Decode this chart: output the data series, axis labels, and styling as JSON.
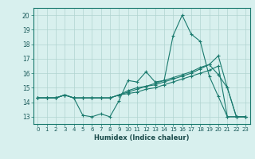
{
  "xlabel": "Humidex (Indice chaleur)",
  "background_color": "#d8f0ee",
  "grid_color": "#b0d4d0",
  "line_color": "#1a7a6e",
  "xlim": [
    -0.5,
    23.5
  ],
  "ylim": [
    12.5,
    20.5
  ],
  "yticks": [
    13,
    14,
    15,
    16,
    17,
    18,
    19,
    20
  ],
  "xticks": [
    0,
    1,
    2,
    3,
    4,
    5,
    6,
    7,
    8,
    9,
    10,
    11,
    12,
    13,
    14,
    15,
    16,
    17,
    18,
    19,
    20,
    21,
    22,
    23
  ],
  "series": [
    [
      14.3,
      14.3,
      14.3,
      14.5,
      14.3,
      13.1,
      13.0,
      13.2,
      13.0,
      14.1,
      15.5,
      15.4,
      16.1,
      15.4,
      15.5,
      18.6,
      20.0,
      18.7,
      18.2,
      15.8,
      14.4,
      13.0,
      13.0,
      13.0
    ],
    [
      14.3,
      14.3,
      14.3,
      14.5,
      14.3,
      14.3,
      14.3,
      14.3,
      14.3,
      14.5,
      14.8,
      15.0,
      15.1,
      15.2,
      15.4,
      15.6,
      15.8,
      16.0,
      16.3,
      16.6,
      15.9,
      15.0,
      13.0,
      13.0
    ],
    [
      14.3,
      14.3,
      14.3,
      14.5,
      14.3,
      14.3,
      14.3,
      14.3,
      14.3,
      14.5,
      14.7,
      14.9,
      15.1,
      15.3,
      15.5,
      15.7,
      15.9,
      16.1,
      16.4,
      16.6,
      17.2,
      15.0,
      13.0,
      13.0
    ],
    [
      14.3,
      14.3,
      14.3,
      14.5,
      14.3,
      14.3,
      14.3,
      14.3,
      14.3,
      14.5,
      14.6,
      14.7,
      14.9,
      15.0,
      15.2,
      15.4,
      15.6,
      15.8,
      16.0,
      16.2,
      16.5,
      13.0,
      13.0,
      13.0
    ]
  ]
}
